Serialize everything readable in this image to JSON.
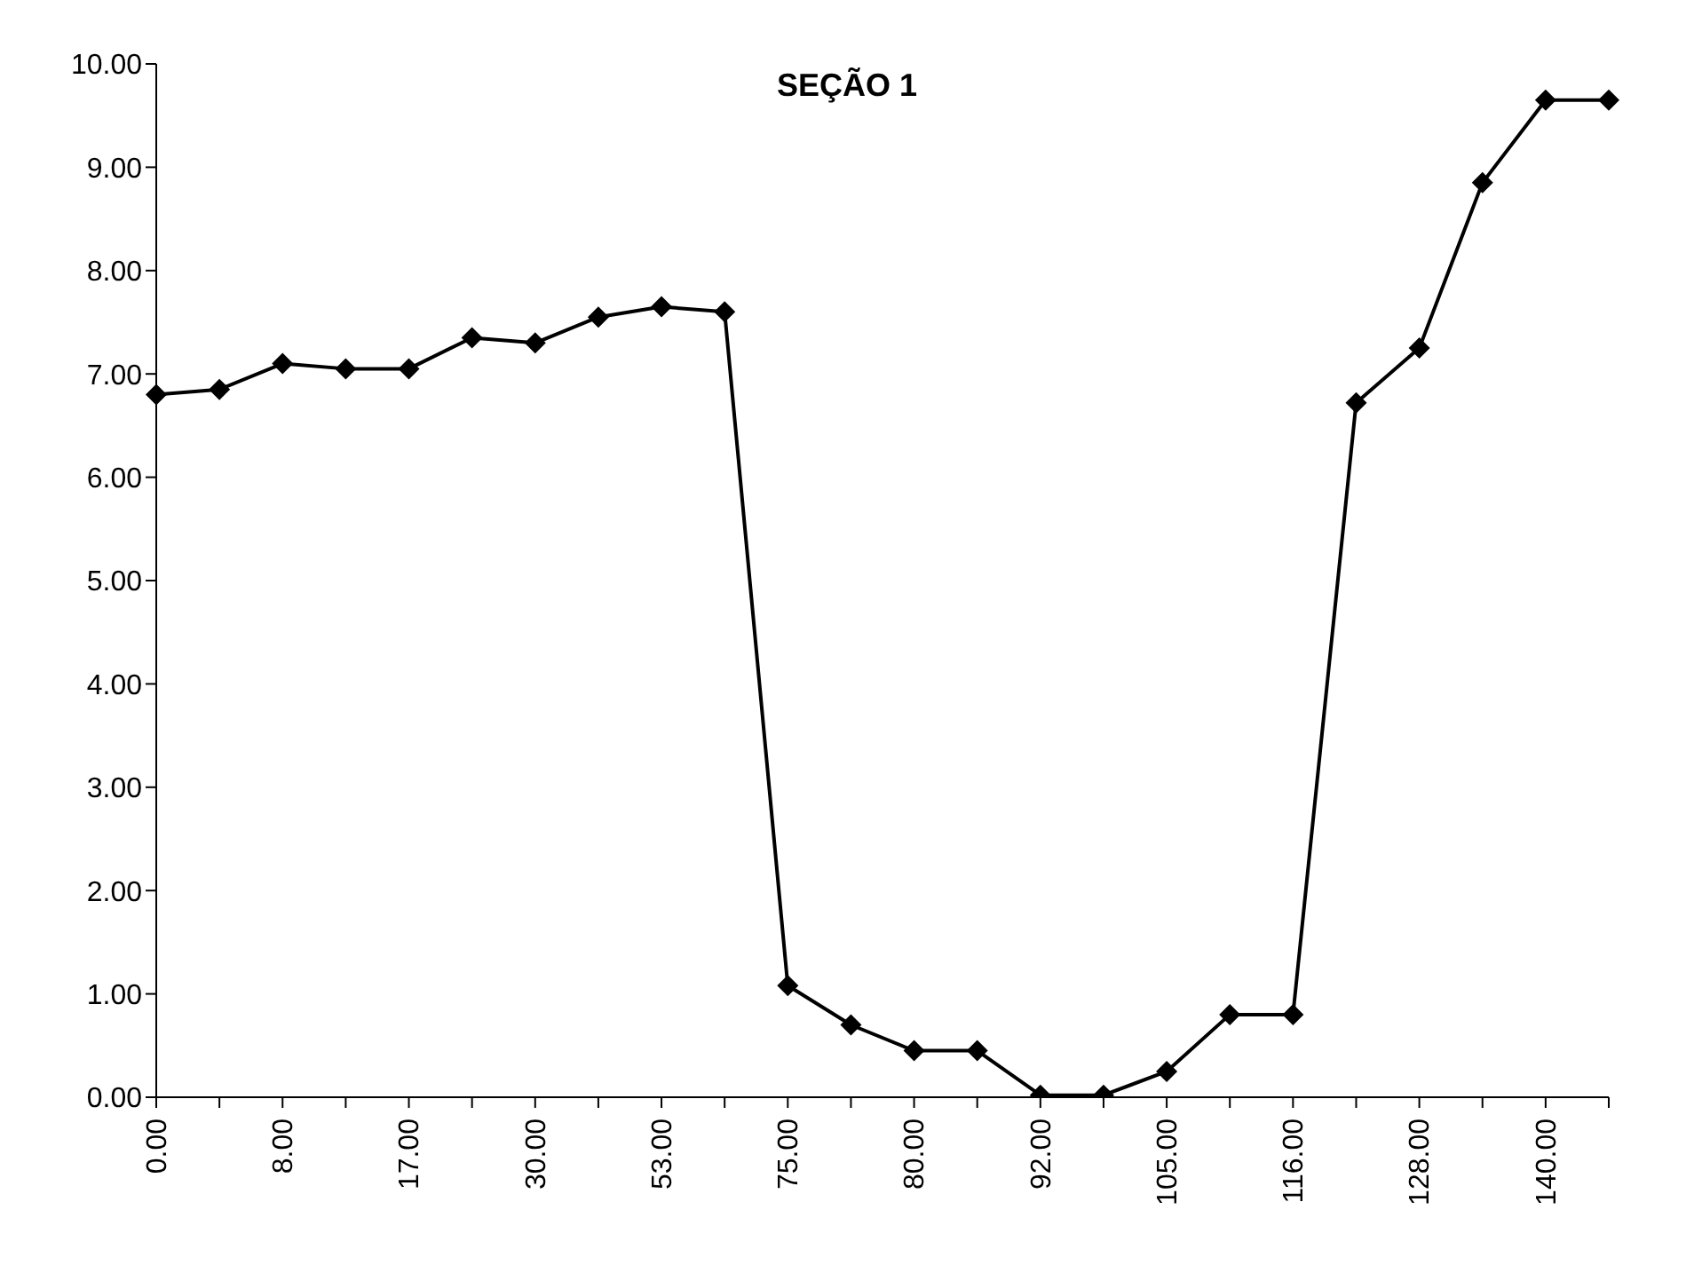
{
  "chart_data": {
    "type": "line",
    "title": "SEÇÃO 1",
    "categories": [
      "0.00",
      null,
      "8.00",
      null,
      "17.00",
      null,
      "30.00",
      null,
      "53.00",
      null,
      "75.00",
      null,
      "80.00",
      null,
      "92.00",
      null,
      "105.00",
      null,
      "116.00",
      null,
      "128.00",
      null,
      "140.00",
      null
    ],
    "series": [
      {
        "color": "#000000",
        "values": [
          6.8,
          6.85,
          7.1,
          7.05,
          7.05,
          7.35,
          7.3,
          7.55,
          7.65,
          7.6,
          1.08,
          0.7,
          0.45,
          0.45,
          0.02,
          0.02,
          0.25,
          0.8,
          0.8,
          6.72,
          7.25,
          8.85,
          9.65,
          9.65
        ]
      }
    ],
    "ylim": [
      0,
      10
    ],
    "yticks": [
      {
        "value": 0,
        "label": "0.00"
      },
      {
        "value": 1,
        "label": "1.00"
      },
      {
        "value": 2,
        "label": "2.00"
      },
      {
        "value": 3,
        "label": "3.00"
      },
      {
        "value": 4,
        "label": "4.00"
      },
      {
        "value": 5,
        "label": "5.00"
      },
      {
        "value": 6,
        "label": "6.00"
      },
      {
        "value": 7,
        "label": "7.00"
      },
      {
        "value": 8,
        "label": "8.00"
      },
      {
        "value": 9,
        "label": "9.00"
      },
      {
        "value": 10,
        "label": "10.00"
      }
    ],
    "grid": false,
    "legend": false,
    "marker": "diamond",
    "line_style": "solid"
  }
}
